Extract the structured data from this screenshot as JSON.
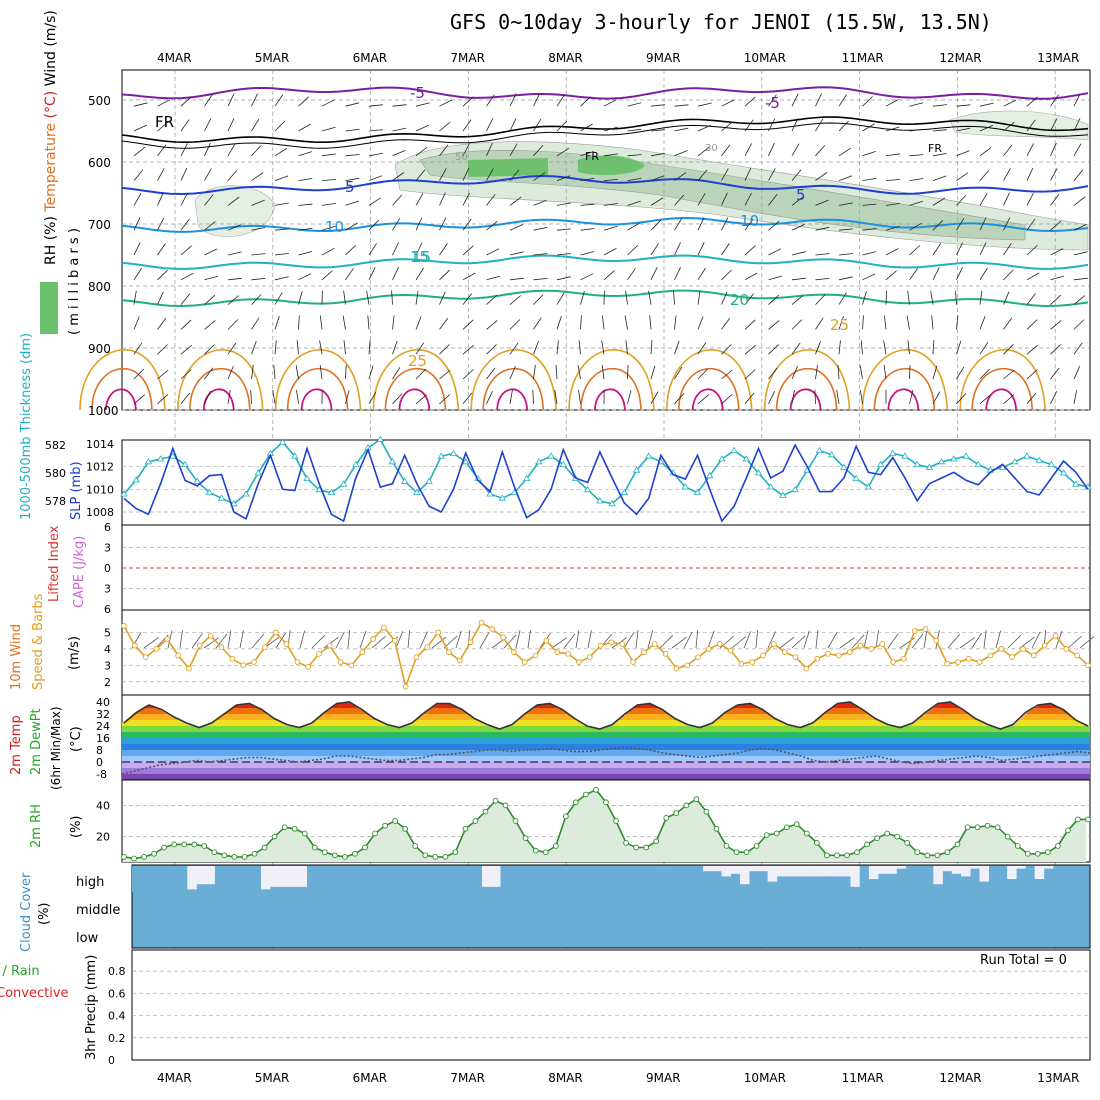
{
  "title": "GFS 0~10day 3-hourly for JENOI (15.5W, 13.5N)",
  "run_total_label": "Run Total = 0",
  "chart_data": {
    "type": "multi-panel meteogram",
    "x_dates": [
      "4MAR",
      "5MAR",
      "6MAR",
      "7MAR",
      "8MAR",
      "9MAR",
      "10MAR",
      "11MAR",
      "12MAR",
      "13MAR"
    ],
    "panels": [
      {
        "id": "upper",
        "ylabel_parts": [
          {
            "text": "RH (%)",
            "color": "#22aa22"
          },
          {
            "text": "Temperature",
            "color": "#e07020"
          },
          {
            "text": "(°C)",
            "color": "#cc2020"
          },
          {
            "text": "Wind (m/s)",
            "color": "#000000"
          }
        ],
        "ylabel_right": "( m i l l i b a r s )",
        "yticks": [
          500,
          600,
          700,
          800,
          900,
          1000
        ],
        "ylim": [
          455,
          1000
        ],
        "contour_labels": [
          {
            "text": "-5",
            "color": "#7b1fa2"
          },
          {
            "text": "FR",
            "color": "#000000"
          },
          {
            "text": "5",
            "color": "#1e40d0"
          },
          {
            "text": "10",
            "color": "#1e90e0"
          },
          {
            "text": "15",
            "color": "#20b0c0"
          },
          {
            "text": "20",
            "color": "#20b080"
          },
          {
            "text": "25",
            "color": "#e0a020"
          },
          {
            "text": "30",
            "color": "#999999"
          },
          {
            "text": "50",
            "color": "#999999"
          }
        ]
      },
      {
        "id": "slp",
        "ylabel_left": "1000-500mb Thickness (dm)",
        "ylabel_right": "SLP (mb)",
        "left_ticks": [
          578,
          580,
          582
        ],
        "right_ticks": [
          1008,
          1010,
          1012,
          1014
        ],
        "slp_mb": [
          1009.2,
          1008.3,
          1007.8,
          1010.5,
          1013.6,
          1010.8,
          1010.3,
          1011.2,
          1011.3,
          1008.0,
          1007.4,
          1010.5,
          1013.0,
          1010.0,
          1009.9,
          1013.6,
          1010.5,
          1007.8,
          1007.2,
          1011.0,
          1013.5,
          1010.2,
          1010.5,
          1013.0,
          1010.5,
          1008.5,
          1008.0,
          1010.0,
          1013.2,
          1010.8,
          1009.8,
          1013.3,
          1010.2,
          1007.5,
          1008.2,
          1010.0,
          1013.5,
          1011.0,
          1010.6,
          1013.3,
          1011.0,
          1008.8,
          1007.8,
          1009.2,
          1013.0,
          1011.3,
          1010.9,
          1013.0,
          1010.0,
          1007.2,
          1008.5,
          1011.0,
          1013.6,
          1011.0,
          1011.6,
          1013.9,
          1012.0,
          1009.8,
          1009.8,
          1011.0,
          1013.8,
          1011.5,
          1011.3,
          1012.8,
          1011.0,
          1009.0,
          1010.5,
          1011.0,
          1011.5,
          1010.8,
          1010.4,
          1011.5,
          1012.2,
          1011.0,
          1009.8,
          1009.5,
          1011.0,
          1012.5,
          1011.5,
          1010.0
        ],
        "thickness_dm": [
          578.5,
          579.5,
          580.8,
          581.0,
          581.2,
          580.6,
          579.4,
          578.6,
          578.2,
          577.8,
          578.5,
          580.0,
          581.4,
          582.2,
          581.2,
          579.6,
          578.8,
          578.6,
          579.2,
          580.6,
          581.8,
          582.4,
          580.8,
          579.4,
          578.6,
          579.4,
          581.2,
          581.4,
          580.8,
          579.6,
          578.5,
          578.2,
          578.6,
          579.6,
          580.8,
          581.2,
          580.6,
          579.6,
          578.8,
          578.0,
          577.8,
          578.6,
          580.2,
          581.2,
          580.8,
          580.0,
          579.0,
          578.6,
          579.8,
          581.0,
          581.6,
          581.0,
          580.0,
          579.0,
          578.4,
          578.8,
          580.2,
          581.6,
          581.3,
          580.4,
          579.6,
          579.0,
          580.6,
          581.4,
          581.2,
          580.6,
          580.4,
          580.8,
          581.0,
          581.2,
          580.6,
          580.2,
          580.4,
          580.8,
          581.2,
          580.9,
          580.6,
          580.0,
          579.2,
          579.0
        ]
      },
      {
        "id": "cape",
        "ylabel_left": "Lifted Index",
        "ylabel_right": "CAPE (J/kg)",
        "yticks": [
          6,
          3,
          0,
          -3,
          -6
        ],
        "ytick_labels": [
          "6",
          "3",
          "0",
          "3",
          "6"
        ],
        "cape_jkg": [],
        "lifted_index": []
      },
      {
        "id": "wind10m",
        "ylabel_left": "10m Wind",
        "ylabel_mid": "Speed & Barbs",
        "ylabel_right": "(m/s)",
        "yticks": [
          2,
          3,
          4,
          5
        ],
        "ylim": [
          1.5,
          6
        ],
        "speed_ms": [
          5.4,
          4.2,
          3.5,
          4.0,
          4.6,
          3.6,
          2.8,
          4.2,
          4.8,
          4.1,
          3.4,
          3.0,
          3.2,
          4.1,
          5.0,
          4.3,
          3.2,
          2.9,
          3.7,
          4.2,
          3.2,
          3.0,
          3.8,
          4.6,
          5.3,
          4.5,
          1.7,
          3.5,
          4.1,
          5.0,
          3.8,
          3.3,
          4.4,
          5.6,
          5.2,
          4.7,
          3.8,
          3.2,
          3.6,
          4.5,
          3.8,
          3.7,
          3.2,
          3.5,
          4.2,
          4.4,
          4.3,
          3.2,
          3.8,
          4.3,
          3.7,
          2.8,
          3.0,
          3.5,
          4.0,
          4.3,
          3.9,
          3.1,
          3.2,
          3.6,
          4.3,
          3.8,
          3.5,
          2.8,
          3.4,
          3.7,
          3.6,
          3.8,
          4.2,
          4.0,
          4.3,
          3.2,
          3.4,
          5.1,
          5.2,
          4.5,
          3.1,
          3.2,
          3.4,
          3.2,
          3.6,
          4.0,
          3.5,
          4.0,
          3.6,
          4.2,
          4.8,
          4.0,
          3.6,
          3.0
        ],
        "series_label_colors": {
          "wind": "#e07020",
          "speed": "#e0a020",
          "barbs": "#000000"
        }
      },
      {
        "id": "temp2m",
        "ylabel_parts": [
          "2m Temp",
          "2m DewPt",
          "(6hr Min/Max)",
          "(°C)"
        ],
        "yticks": [
          -8,
          0,
          8,
          16,
          24,
          32,
          40
        ],
        "ytick_labels": [
          "-8",
          "0",
          "8",
          "16",
          "24",
          "32",
          "40"
        ],
        "temp_c": [
          26,
          33,
          38,
          35,
          30,
          26,
          23,
          26,
          32,
          38,
          39,
          35,
          29,
          25,
          23,
          26,
          33,
          39,
          40,
          35,
          29,
          25,
          23,
          26,
          33,
          39,
          39,
          35,
          29,
          25,
          22,
          25,
          32,
          38,
          39,
          35,
          29,
          24,
          22,
          25,
          32,
          38,
          39,
          35,
          29,
          25,
          23,
          26,
          33,
          38,
          39,
          35,
          29,
          25,
          23,
          26,
          33,
          39,
          40,
          35,
          29,
          25,
          23,
          26,
          33,
          39,
          40,
          35,
          29,
          25,
          22,
          25,
          33,
          38,
          39,
          35,
          28,
          24
        ],
        "dewpoint_c": [
          -8,
          -6,
          -4,
          -2,
          -1,
          0,
          1,
          0,
          1,
          2,
          3,
          3,
          2,
          1,
          0,
          1,
          2,
          4,
          4,
          3,
          2,
          1,
          1,
          2,
          3,
          5,
          5,
          6,
          7,
          8,
          8,
          7,
          8,
          8,
          9,
          8,
          7,
          7,
          8,
          9,
          10,
          9,
          8,
          6,
          5,
          4,
          3,
          4,
          5,
          6,
          8,
          9,
          8,
          6,
          4,
          1,
          0,
          1,
          2,
          3,
          4,
          2,
          0,
          -1,
          0,
          1,
          2,
          3,
          4,
          3,
          1,
          2,
          3,
          4,
          5,
          6,
          7,
          6
        ]
      },
      {
        "id": "rh2m",
        "ylabel_left": "2m RH",
        "ylabel_right": "(%)",
        "yticks": [
          20,
          40
        ],
        "ylim": [
          5,
          55
        ],
        "rh_pct": [
          7,
          6,
          7,
          9,
          13,
          15,
          15,
          15,
          14,
          10,
          8,
          7,
          7,
          9,
          13,
          20,
          26,
          25,
          22,
          13,
          10,
          8,
          7,
          9,
          13,
          22,
          27,
          30,
          25,
          14,
          8,
          7,
          7,
          10,
          25,
          30,
          36,
          43,
          40,
          30,
          19,
          11,
          10,
          14,
          33,
          42,
          47,
          50,
          42,
          30,
          16,
          13,
          13,
          17,
          32,
          35,
          40,
          44,
          36,
          25,
          14,
          10,
          10,
          14,
          21,
          22,
          26,
          28,
          22,
          16,
          8,
          8,
          8,
          10,
          15,
          19,
          22,
          20,
          16,
          10,
          8,
          8,
          10,
          15,
          26,
          26,
          27,
          26,
          20,
          14,
          9,
          9,
          10,
          14,
          24,
          31,
          31
        ]
      },
      {
        "id": "cloud",
        "ylabel_left": "Cloud Cover",
        "ylabel_right": "(%)",
        "levels": [
          "high",
          "middle",
          "low"
        ],
        "high_pct": [
          0,
          0,
          0,
          0,
          0,
          0,
          10,
          30,
          30,
          0,
          0,
          0,
          0,
          0,
          10,
          20,
          20,
          20,
          20,
          0,
          0,
          0,
          0,
          0,
          0,
          0,
          0,
          0,
          0,
          0,
          0,
          0,
          0,
          0,
          0,
          0,
          0,
          0,
          20,
          20,
          0,
          0,
          0,
          0,
          0,
          0,
          0,
          0,
          0,
          0,
          0,
          0,
          0,
          0,
          0,
          0,
          0,
          0,
          0,
          0,
          0,
          100,
          80,
          80,
          60,
          70,
          30,
          80,
          80,
          40,
          60,
          60,
          60,
          60,
          60,
          60,
          60,
          60,
          20,
          0,
          50,
          70,
          70,
          90,
          100,
          100,
          100,
          30,
          80,
          70,
          60,
          90,
          40,
          100,
          100,
          50,
          90,
          100,
          50,
          90,
          100,
          100,
          100,
          100
        ],
        "middle_pct": [
          0,
          0,
          0,
          0,
          0,
          0,
          0,
          0,
          0,
          0,
          0,
          0,
          0,
          0,
          0,
          0,
          0,
          0,
          0,
          0,
          0,
          0,
          0,
          0,
          0,
          0,
          0,
          0,
          0,
          0,
          0,
          0,
          0,
          0,
          0,
          0,
          0,
          0,
          0,
          0,
          0,
          0,
          0,
          0,
          0,
          0,
          0,
          0,
          0,
          0,
          0,
          0,
          0,
          0,
          0,
          0,
          0,
          0,
          0,
          0,
          0,
          0,
          0,
          0,
          0,
          0,
          0,
          0,
          0,
          0,
          0,
          0,
          0,
          0,
          0,
          0,
          0,
          0,
          0,
          0,
          0,
          0,
          0,
          0,
          0,
          0,
          0,
          0,
          0,
          0,
          0,
          0,
          0,
          0,
          0,
          0,
          0,
          0,
          0,
          0,
          0,
          0,
          0,
          0
        ],
        "low_pct": [
          0,
          0,
          0,
          0,
          0,
          0,
          0,
          0,
          0,
          0,
          0,
          0,
          0,
          0,
          0,
          0,
          0,
          0,
          0,
          0,
          0,
          0,
          0,
          0,
          0,
          0,
          0,
          0,
          0,
          0,
          0,
          0,
          0,
          0,
          0,
          0,
          0,
          0,
          0,
          0,
          0,
          0,
          0,
          0,
          0,
          0,
          0,
          0,
          0,
          0,
          0,
          0,
          0,
          0,
          0,
          0,
          0,
          0,
          0,
          0,
          0,
          0,
          0,
          0,
          0,
          0,
          0,
          0,
          0,
          0,
          0,
          0,
          0,
          0,
          0,
          0,
          0,
          0,
          0,
          0,
          0,
          0,
          0,
          0,
          0,
          0,
          0,
          0,
          0,
          0,
          0,
          0,
          0,
          0,
          0,
          0,
          0,
          0,
          0,
          0,
          0,
          0,
          0,
          0
        ]
      },
      {
        "id": "precip",
        "ylabel_parts": [
          {
            "text": "Total / Rain",
            "color": "#22aa22"
          },
          {
            "text": "Convective",
            "color": "#dd2222"
          },
          {
            "text": "3hr Precip (mm)",
            "color": "#000000"
          }
        ],
        "yticks": [
          0,
          0.2,
          0.4,
          0.6,
          0.8
        ],
        "ytick_labels": [
          "0",
          "0.2",
          "0.4",
          "0.6",
          "0.8"
        ],
        "ylim": [
          0,
          0.95
        ],
        "precip_mm": []
      }
    ],
    "colors": {
      "slp": "#1e40d0",
      "thickness": "#20b0c0",
      "lifted_index": "#dd3333",
      "cape": "#cc66cc",
      "wind_speed": "#e0a020",
      "barbs": "#555555",
      "rh": "#2e8b2e",
      "cloud": "#6aaed6",
      "cloud_clear": "#f0f0f8"
    }
  }
}
